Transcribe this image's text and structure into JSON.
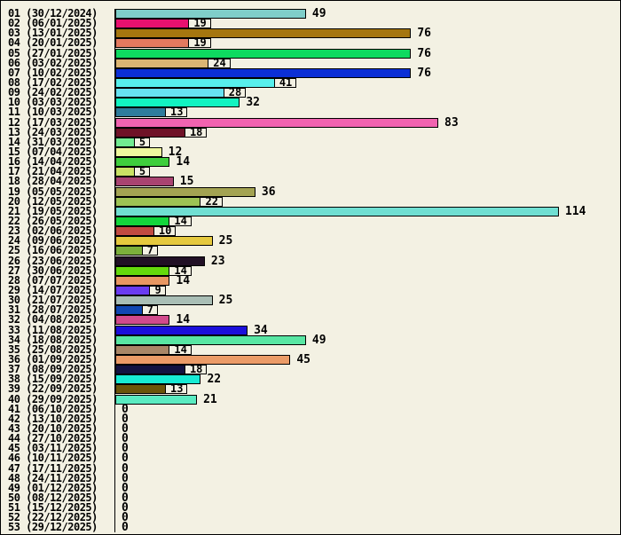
{
  "style": {
    "background": "#F3F1E3",
    "outline": "#000000",
    "text_color": "#000000"
  },
  "chart_data": {
    "type": "bar",
    "orientation": "horizontal",
    "title": "",
    "xlabel": "",
    "ylabel": "",
    "xlim": [
      0,
      130
    ],
    "grid": false,
    "legend": "none",
    "categories": [
      "01 (30/12/2024)",
      "02 (06/01/2025)",
      "03 (13/01/2025)",
      "04 (20/01/2025)",
      "05 (27/01/2025)",
      "06 (03/02/2025)",
      "07 (10/02/2025)",
      "08 (17/02/2025)",
      "09 (24/02/2025)",
      "10 (03/03/2025)",
      "11 (10/03/2025)",
      "12 (17/03/2025)",
      "13 (24/03/2025)",
      "14 (31/03/2025)",
      "15 (07/04/2025)",
      "16 (14/04/2025)",
      "17 (21/04/2025)",
      "18 (28/04/2025)",
      "19 (05/05/2025)",
      "20 (12/05/2025)",
      "21 (19/05/2025)",
      "22 (26/05/2025)",
      "23 (02/06/2025)",
      "24 (09/06/2025)",
      "25 (16/06/2025)",
      "26 (23/06/2025)",
      "27 (30/06/2025)",
      "28 (07/07/2025)",
      "29 (14/07/2025)",
      "30 (21/07/2025)",
      "31 (28/07/2025)",
      "32 (04/08/2025)",
      "33 (11/08/2025)",
      "34 (18/08/2025)",
      "35 (25/08/2025)",
      "36 (01/09/2025)",
      "37 (08/09/2025)",
      "38 (15/09/2025)",
      "39 (22/09/2025)",
      "40 (29/09/2025)",
      "41 (06/10/2025)",
      "42 (13/10/2025)",
      "43 (20/10/2025)",
      "44 (27/10/2025)",
      "45 (03/11/2025)",
      "46 (10/11/2025)",
      "47 (17/11/2025)",
      "48 (24/11/2025)",
      "49 (01/12/2025)",
      "50 (08/12/2025)",
      "51 (15/12/2025)",
      "52 (22/12/2025)",
      "53 (29/12/2025)"
    ],
    "values": [
      49,
      19,
      76,
      19,
      76,
      24,
      76,
      41,
      28,
      32,
      13,
      83,
      18,
      5,
      12,
      14,
      5,
      15,
      36,
      22,
      114,
      14,
      10,
      25,
      7,
      23,
      14,
      14,
      9,
      25,
      7,
      14,
      34,
      49,
      14,
      45,
      18,
      22,
      13,
      21,
      0,
      0,
      0,
      0,
      0,
      0,
      0,
      0,
      0,
      0,
      0,
      0,
      0
    ],
    "bar_colors": [
      "#7FCEC9",
      "#E8116F",
      "#A5760F",
      "#E37A5F",
      "#0EDA60",
      "#DBB573",
      "#0B2FD6",
      "#57EFEC",
      "#67E2F2",
      "#12F3C1",
      "#2E7C9C",
      "#F163B0",
      "#6F1227",
      "#71EB91",
      "#EFF89E",
      "#3FCE3D",
      "#C9E264",
      "#A94471",
      "#A3A352",
      "#9DC354",
      "#70DFD2",
      "#13D63C",
      "#C14B41",
      "#E5C93E",
      "#7CAF3B",
      "#211025",
      "#64D90C",
      "#E89762",
      "#6A3BF1",
      "#A9BEB5",
      "#1047B2",
      "#D14A8C",
      "#1B0FDB",
      "#58E6A3",
      "#A98667",
      "#EB9B67",
      "#121241",
      "#17EBD4",
      "#6B5509",
      "#5AEBC1",
      null,
      null,
      null,
      null,
      null,
      null,
      null,
      null,
      null,
      null,
      null,
      null,
      null
    ]
  }
}
